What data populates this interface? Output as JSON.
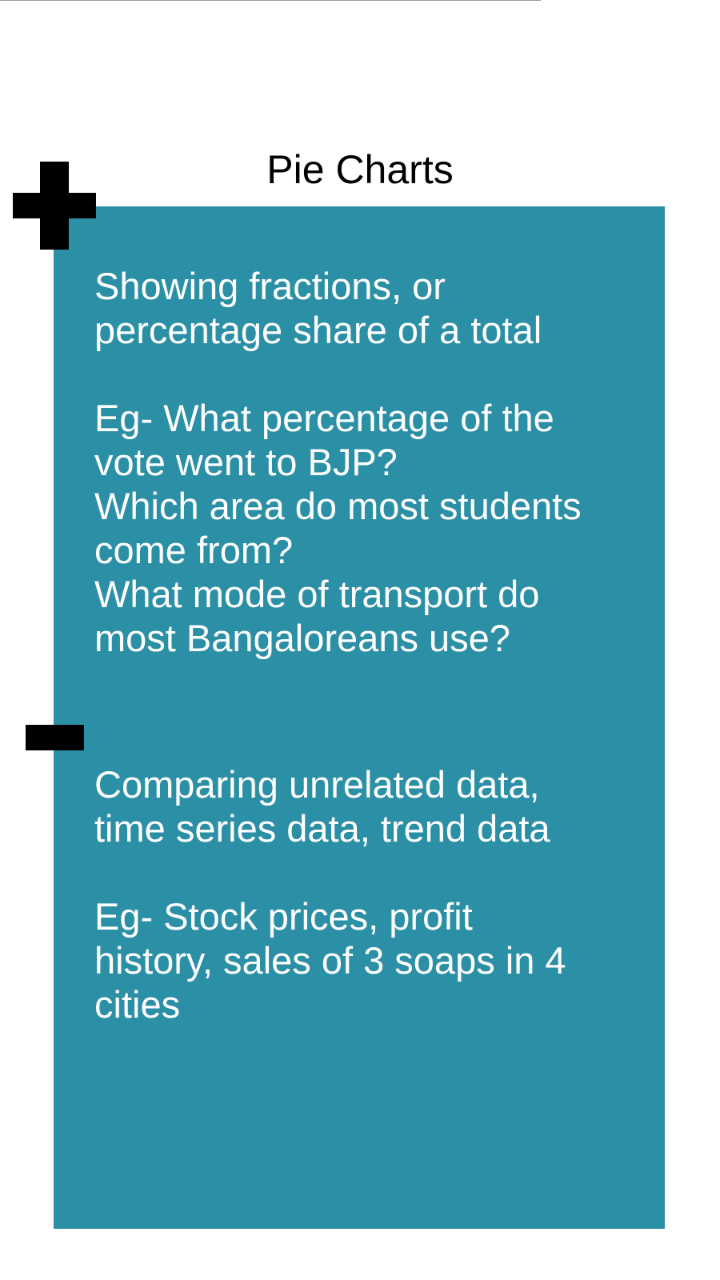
{
  "title": "Pie Charts",
  "colors": {
    "panel": "#2b8fa6",
    "text": "#ffffff",
    "marker": "#000000"
  },
  "pros": {
    "icon": "plus-icon",
    "description": [
      "Showing fractions, or",
      "percentage share of a total"
    ],
    "examples": [
      "Eg- What percentage of the",
      "vote went to BJP?",
      "Which area do most students",
      "come from?",
      "What mode of transport do",
      "most Bangaloreans use?"
    ]
  },
  "cons": {
    "icon": "minus-icon",
    "description": [
      "Comparing unrelated data,",
      "time series data, trend data"
    ],
    "examples": [
      "Eg- Stock prices, profit",
      "history, sales of 3 soaps in 4",
      "cities"
    ]
  }
}
